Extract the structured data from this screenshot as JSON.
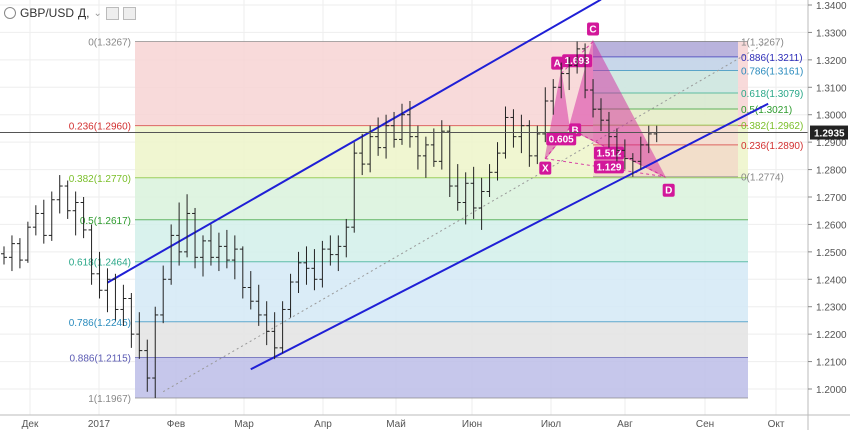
{
  "header": {
    "symbol": "GBP/USD",
    "timeframe": "Д,",
    "chevron": "⌄"
  },
  "price_label": "1.2935",
  "colors": {
    "bars": "#222222",
    "channel": "#1f1fd6",
    "harmonic_fill": "#d2179a",
    "harmonic_label_bg": "#d2179a",
    "crosshair": "#555555"
  },
  "chart_data": {
    "type": "bar",
    "ylim": [
      1.193,
      1.342
    ],
    "y_ticks": [
      "1.3400",
      "1.3300",
      "1.3200",
      "1.3100",
      "1.3000",
      "1.2900",
      "1.2800",
      "1.2700",
      "1.2600",
      "1.2500",
      "1.2400",
      "1.2300",
      "1.2200",
      "1.2100",
      "1.2000"
    ],
    "x_ticks": [
      "Дек",
      "2017",
      "Фев",
      "Мар",
      "Апр",
      "Май",
      "Июн",
      "Июл",
      "Авг",
      "Сен",
      "Окт"
    ],
    "ohlc": [
      [
        1.2493,
        1.252,
        1.2454,
        1.248
      ],
      [
        1.248,
        1.256,
        1.243,
        1.253
      ],
      [
        1.253,
        1.255,
        1.244,
        1.247
      ],
      [
        1.247,
        1.261,
        1.246,
        1.259
      ],
      [
        1.259,
        1.267,
        1.256,
        1.264
      ],
      [
        1.264,
        1.269,
        1.253,
        1.256
      ],
      [
        1.256,
        1.272,
        1.254,
        1.269
      ],
      [
        1.269,
        1.278,
        1.264,
        1.274
      ],
      [
        1.274,
        1.276,
        1.262,
        1.265
      ],
      [
        1.265,
        1.272,
        1.256,
        1.268
      ],
      [
        1.268,
        1.27,
        1.255,
        1.258
      ],
      [
        1.258,
        1.26,
        1.238,
        1.242
      ],
      [
        1.242,
        1.25,
        1.233,
        1.236
      ],
      [
        1.236,
        1.244,
        1.228,
        1.24
      ],
      [
        1.24,
        1.242,
        1.225,
        1.229
      ],
      [
        1.229,
        1.238,
        1.223,
        1.233
      ],
      [
        1.233,
        1.235,
        1.215,
        1.22
      ],
      [
        1.22,
        1.228,
        1.211,
        1.214
      ],
      [
        1.214,
        1.218,
        1.199,
        1.204
      ],
      [
        1.204,
        1.23,
        1.1967,
        1.227
      ],
      [
        1.227,
        1.245,
        1.224,
        1.24
      ],
      [
        1.24,
        1.26,
        1.238,
        1.256
      ],
      [
        1.256,
        1.268,
        1.245,
        1.25
      ],
      [
        1.25,
        1.271,
        1.248,
        1.264
      ],
      [
        1.264,
        1.266,
        1.244,
        1.248
      ],
      [
        1.248,
        1.256,
        1.241,
        1.254
      ],
      [
        1.254,
        1.26,
        1.245,
        1.248
      ],
      [
        1.248,
        1.257,
        1.243,
        1.252
      ],
      [
        1.252,
        1.258,
        1.244,
        1.247
      ],
      [
        1.247,
        1.256,
        1.24,
        1.251
      ],
      [
        1.251,
        1.252,
        1.233,
        1.237
      ],
      [
        1.237,
        1.243,
        1.229,
        1.232
      ],
      [
        1.232,
        1.238,
        1.223,
        1.227
      ],
      [
        1.227,
        1.232,
        1.216,
        1.221
      ],
      [
        1.221,
        1.228,
        1.2109,
        1.215
      ],
      [
        1.215,
        1.232,
        1.213,
        1.229
      ],
      [
        1.229,
        1.242,
        1.226,
        1.239
      ],
      [
        1.239,
        1.25,
        1.235,
        1.246
      ],
      [
        1.246,
        1.252,
        1.238,
        1.244
      ],
      [
        1.244,
        1.251,
        1.236,
        1.24
      ],
      [
        1.24,
        1.254,
        1.237,
        1.251
      ],
      [
        1.251,
        1.256,
        1.245,
        1.249
      ],
      [
        1.249,
        1.256,
        1.243,
        1.252
      ],
      [
        1.252,
        1.262,
        1.248,
        1.259
      ],
      [
        1.259,
        1.29,
        1.257,
        1.286
      ],
      [
        1.286,
        1.293,
        1.278,
        1.282
      ],
      [
        1.282,
        1.296,
        1.279,
        1.292
      ],
      [
        1.292,
        1.299,
        1.285,
        1.288
      ],
      [
        1.288,
        1.3,
        1.284,
        1.296
      ],
      [
        1.296,
        1.301,
        1.288,
        1.291
      ],
      [
        1.291,
        1.304,
        1.289,
        1.3
      ],
      [
        1.3,
        1.305,
        1.288,
        1.292
      ],
      [
        1.292,
        1.296,
        1.28,
        1.285
      ],
      [
        1.285,
        1.292,
        1.277,
        1.289
      ],
      [
        1.289,
        1.295,
        1.281,
        1.283
      ],
      [
        1.283,
        1.298,
        1.28,
        1.294
      ],
      [
        1.294,
        1.296,
        1.27,
        1.274
      ],
      [
        1.274,
        1.282,
        1.265,
        1.268
      ],
      [
        1.268,
        1.279,
        1.26,
        1.275
      ],
      [
        1.275,
        1.281,
        1.262,
        1.266
      ],
      [
        1.266,
        1.277,
        1.258,
        1.272
      ],
      [
        1.272,
        1.282,
        1.27,
        1.279
      ],
      [
        1.279,
        1.29,
        1.276,
        1.286
      ],
      [
        1.286,
        1.303,
        1.284,
        1.299
      ],
      [
        1.299,
        1.302,
        1.288,
        1.292
      ],
      [
        1.292,
        1.3,
        1.286,
        1.296
      ],
      [
        1.296,
        1.298,
        1.281,
        1.285
      ],
      [
        1.285,
        1.296,
        1.282,
        1.293
      ],
      [
        1.293,
        1.31,
        1.29,
        1.305
      ],
      [
        1.305,
        1.313,
        1.3,
        1.31
      ],
      [
        1.31,
        1.319,
        1.306,
        1.315
      ],
      [
        1.315,
        1.321,
        1.309,
        1.318
      ],
      [
        1.318,
        1.3267,
        1.315,
        1.324
      ],
      [
        1.324,
        1.326,
        1.306,
        1.309
      ],
      [
        1.309,
        1.313,
        1.299,
        1.302
      ],
      [
        1.302,
        1.306,
        1.294,
        1.298
      ],
      [
        1.298,
        1.301,
        1.288,
        1.292
      ],
      [
        1.292,
        1.295,
        1.283,
        1.287
      ],
      [
        1.287,
        1.291,
        1.28,
        1.284
      ],
      [
        1.284,
        1.286,
        1.2774,
        1.283
      ],
      [
        1.283,
        1.292,
        1.28,
        1.289
      ],
      [
        1.289,
        1.296,
        1.286,
        1.293
      ],
      [
        1.293,
        1.296,
        1.29,
        1.2935
      ]
    ],
    "fib_left": {
      "levels": [
        {
          "label": "0(1.3267)",
          "value": 1.3267,
          "fill": "#f7d3d3"
        },
        {
          "label": "0.236(1.2960)",
          "value": 1.296,
          "fill": "#edf5c9"
        },
        {
          "label": "0.382(1.2770)",
          "value": 1.277,
          "fill": "#d9f2dc"
        },
        {
          "label": "0.5(1.2617)",
          "value": 1.2617,
          "fill": "#d2f0ea"
        },
        {
          "label": "0.618(1.2464)",
          "value": 1.2464,
          "fill": "#d4e9f6"
        },
        {
          "label": "0.786(1.2245)",
          "value": 1.2245,
          "fill": "#e3e3e3"
        },
        {
          "label": "0.886(1.2115)",
          "value": 1.2115,
          "fill": "#bcbde8"
        },
        {
          "label": "1(1.1967)",
          "value": 1.1967,
          "fill": null
        }
      ],
      "label_colors": [
        "#888888",
        "#d23030",
        "#7bbf2a",
        "#2e9b2e",
        "#2ba889",
        "#2a8bbd",
        "#5a5ab3",
        "#888888"
      ]
    },
    "fib_right": {
      "levels": [
        {
          "label": "1(1.3267)",
          "value": 1.3267,
          "color": "#888888"
        },
        {
          "label": "0.886(1.3211)",
          "value": 1.3211,
          "color": "#2d2db8"
        },
        {
          "label": "0.786(1.3161)",
          "value": 1.3161,
          "color": "#2a8bbd"
        },
        {
          "label": "0.618(1.3079)",
          "value": 1.3079,
          "color": "#2ba889"
        },
        {
          "label": "0.5(1.3021)",
          "value": 1.3021,
          "color": "#2e9b2e"
        },
        {
          "label": "0.382(1.2962)",
          "value": 1.2962,
          "color": "#7bbf2a"
        },
        {
          "label": "0.236(1.2890)",
          "value": 1.289,
          "color": "#d23030"
        },
        {
          "label": "0(1.2774)",
          "value": 1.2774,
          "color": "#888888"
        }
      ]
    },
    "harmonic": {
      "points": {
        "X": {
          "bar": 68,
          "price": 1.284
        },
        "A": {
          "bar": 70,
          "price": 1.315
        },
        "B": {
          "bar": 71,
          "price": 1.295
        },
        "C": {
          "bar": 74,
          "price": 1.3267
        },
        "D": {
          "bar": 83,
          "price": 1.2774
        }
      },
      "ratios": [
        {
          "text": "1.693",
          "bar": 72,
          "price": 1.3195
        },
        {
          "text": "0.605",
          "bar": 70,
          "price": 1.291
        },
        {
          "text": "1.512",
          "bar": 76,
          "price": 1.2858
        },
        {
          "text": "1.129",
          "bar": 76,
          "price": 1.2808
        }
      ]
    },
    "channel": {
      "upper": [
        {
          "bar": 13,
          "price": 1.2388
        },
        {
          "bar": 75,
          "price": 1.342
        }
      ],
      "lower": [
        {
          "bar": 31,
          "price": 1.2072
        },
        {
          "bar": 96,
          "price": 1.304
        }
      ]
    },
    "dotted_diagonal": [
      {
        "bar": 20,
        "price": 1.199
      },
      {
        "bar": 96,
        "price": 1.3267
      }
    ]
  }
}
